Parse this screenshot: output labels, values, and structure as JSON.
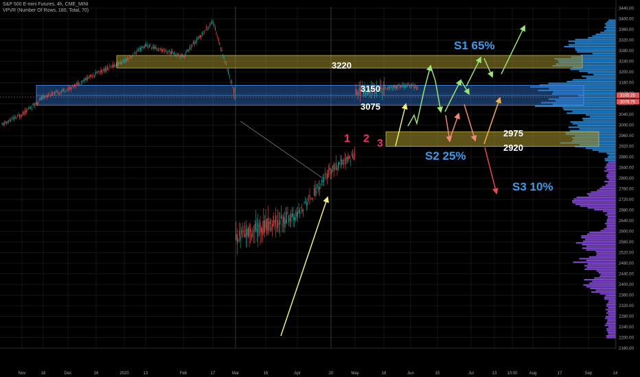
{
  "header": {
    "line1": "S&P 500 E-mini Futures, 4h, CME_MINI",
    "line2": "VPVR (Number Of Rows, 180, Total, 70)"
  },
  "colors": {
    "background": "#000000",
    "candle_up": "#26a69a",
    "candle_down": "#ef5350",
    "zone_gold": "#9b8a2a",
    "zone_blue": "#2f6fc9",
    "vp_blue": "#2a8bd8",
    "vp_purple": "#8a4de0",
    "scenario_blue": "#3d9be9",
    "peak_pink": "#e8336a",
    "arrow_yellow": "#f5f07a",
    "arrow_green": "#9be47a",
    "arrow_salmon": "#f28a78",
    "arrow_orange": "#f5b04a",
    "arrow_red": "#e84a4a"
  },
  "chart_data": {
    "type": "candlestick",
    "instrument": "S&P 500 E-mini Futures",
    "interval": "4h",
    "y_range": [
      2140,
      3460
    ],
    "y_ticks": [
      3440,
      3400,
      3360,
      3320,
      3280,
      3240,
      3200,
      3160,
      3120,
      3080,
      3040,
      3000,
      2960,
      2920,
      2880,
      2840,
      2800,
      2760,
      2720,
      2680,
      2640,
      2600,
      2560,
      2520,
      2480,
      2440,
      2400,
      2360,
      2320,
      2280,
      2240,
      2200,
      2160
    ],
    "x_ticks": [
      "Nov",
      "18",
      "Dec",
      "16",
      "2020",
      "13",
      "Feb",
      "17",
      "Mar",
      "16",
      "Apr",
      "20",
      "May",
      "18",
      "Jun",
      "15",
      "Jul",
      "13",
      "10:00",
      "Aug",
      "17",
      "Sep",
      "14"
    ],
    "price_path": [
      [
        "Nov",
        3040
      ],
      [
        "18",
        3105
      ],
      [
        "Dec",
        3135
      ],
      [
        "16",
        3195
      ],
      [
        "2020",
        3240
      ],
      [
        "13",
        3300
      ],
      [
        "Feb",
        3260
      ],
      [
        "17",
        3390
      ],
      [
        "Mar",
        3110
      ],
      [
        "16",
        2400
      ],
      [
        "Apr",
        2660
      ],
      [
        "20",
        2830
      ],
      [
        "May",
        2890
      ],
      [
        "18",
        2990
      ],
      [
        "Jun",
        3150
      ]
    ],
    "current_price_tags": [
      "3105.25",
      "3076.75"
    ],
    "zones": [
      {
        "name": "gold-upper",
        "low": 3215,
        "high": 3262,
        "label": "3220"
      },
      {
        "name": "blue-middle",
        "low": 3075,
        "high": 3150,
        "label_top": "3150",
        "label_bottom": "3075"
      },
      {
        "name": "gold-lower",
        "low": 2920,
        "high": 2975,
        "label_top": "2975",
        "label_bottom": "2920"
      }
    ],
    "scenarios": [
      {
        "label": "S1 65%"
      },
      {
        "label": "S2 25%"
      },
      {
        "label": "S3 10%"
      }
    ],
    "peak_labels": [
      "1",
      "2",
      "3"
    ],
    "volume_profile": {
      "split_price": 2860,
      "high_volume_rows": [
        [
          3080,
          1.0
        ],
        [
          3140,
          0.92
        ],
        [
          3230,
          0.78
        ],
        [
          3300,
          0.55
        ],
        [
          2950,
          0.7
        ],
        [
          3000,
          0.62
        ],
        [
          2720,
          0.5
        ],
        [
          2480,
          0.45
        ],
        [
          2560,
          0.52
        ],
        [
          2400,
          0.38
        ]
      ]
    }
  }
}
